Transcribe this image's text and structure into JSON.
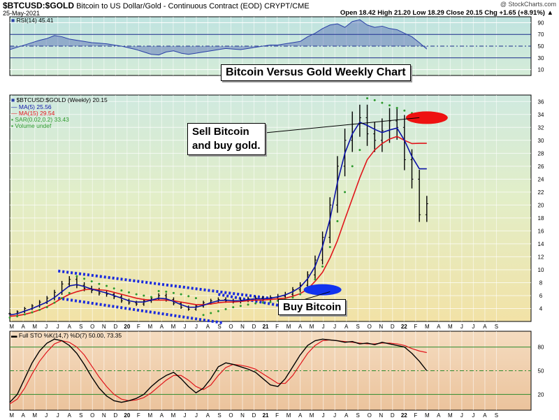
{
  "header": {
    "symbol": "$BTCUSD:$GOLD",
    "description": "Bitcoin to US Dollar/Gold - Continuous Contract (EOD) CRYPT/CME",
    "date": "25-May-2021",
    "watermark": "@ StockCharts.com",
    "ohlc": "Open 18.42  High 21.20  Low 18.29  Close 20.15  Chg +1.65 (+8.91%) ▲"
  },
  "annotations": {
    "title": "Bitcoin Versus Gold Weekly Chart",
    "sell_line1": "Sell Bitcoin",
    "sell_line2": "and buy gold.",
    "buy": "Buy Bitcoin"
  },
  "colors": {
    "price": "#000000",
    "ma5": "#0b12a8",
    "ma15": "#e0151b",
    "sar": "#2e9a2e",
    "sell_marker": "#ee1111",
    "buy_marker": "#1133ee",
    "channel": "#1a2bdd",
    "rsi_line": "#2a3fa6",
    "sto_k": "#000000",
    "sto_d": "#e0151b"
  },
  "chart_data": [
    {
      "type": "line",
      "panel": "rsi",
      "legend": "RSI(14) 45.41",
      "ylim": [
        0,
        100
      ],
      "ticks": [
        10,
        30,
        50,
        70,
        90
      ],
      "reference_lines": [
        30,
        50,
        70
      ],
      "series": [
        {
          "name": "RSI(14)",
          "x": [
            0,
            2,
            4,
            6,
            8,
            10,
            12,
            14,
            16,
            18,
            20,
            22,
            24,
            26,
            28,
            30,
            32,
            34,
            36,
            38,
            40,
            42,
            44,
            46,
            48,
            50,
            52,
            54,
            56,
            58,
            60,
            62,
            64,
            66,
            68,
            70,
            72,
            74,
            76,
            78,
            80,
            82,
            84,
            86,
            88,
            90,
            92,
            94,
            96,
            98,
            100,
            102,
            104,
            106,
            108,
            110,
            112
          ],
          "values": [
            44,
            48,
            52,
            56,
            60,
            63,
            68,
            66,
            62,
            60,
            58,
            56,
            55,
            54,
            52,
            50,
            47,
            44,
            40,
            36,
            35,
            40,
            42,
            38,
            36,
            38,
            40,
            42,
            44,
            46,
            45,
            44,
            46,
            48,
            50,
            52,
            52,
            54,
            56,
            58,
            66,
            72,
            80,
            86,
            88,
            82,
            92,
            95,
            86,
            82,
            84,
            80,
            78,
            72,
            66,
            56,
            45
          ]
        }
      ]
    },
    {
      "type": "line",
      "panel": "price",
      "title": "$BTCUSD:$GOLD (Weekly) 20.15",
      "ylim": [
        2,
        37
      ],
      "ticks": [
        4,
        6,
        8,
        10,
        12,
        14,
        16,
        18,
        20,
        22,
        24,
        26,
        28,
        30,
        32,
        34,
        36
      ],
      "x_tick_labels": [
        "M",
        "A",
        "M",
        "J",
        "J",
        "A",
        "S",
        "O",
        "N",
        "D",
        "20",
        "F",
        "M",
        "A",
        "M",
        "J",
        "J",
        "A",
        "S",
        "O",
        "N",
        "D",
        "21",
        "F",
        "M",
        "A",
        "M",
        "J",
        "J",
        "A",
        "S",
        "O",
        "N",
        "D",
        "22",
        "F",
        "M",
        "A",
        "M",
        "J",
        "J",
        "A",
        "S"
      ],
      "legend_entries": [
        "MA(5) 25.56",
        "MA(15) 29.54",
        "SAR(0.02,0.2) 33.43",
        "Volume undef"
      ],
      "series": [
        {
          "name": "$BTCUSD:$GOLD",
          "x": [
            0,
            2,
            4,
            6,
            8,
            10,
            12,
            14,
            16,
            18,
            20,
            22,
            24,
            26,
            28,
            30,
            32,
            34,
            36,
            38,
            40,
            42,
            44,
            46,
            48,
            50,
            52,
            54,
            56,
            58,
            60,
            62,
            64,
            66,
            68,
            70,
            72,
            74,
            76,
            78,
            80,
            82,
            84,
            86,
            88,
            90,
            92,
            94,
            96,
            98,
            100,
            102,
            104,
            106,
            108,
            110,
            112
          ],
          "values": [
            3.2,
            3.5,
            4.0,
            4.4,
            5.0,
            5.6,
            6.5,
            7.8,
            8.5,
            7.6,
            7.1,
            6.8,
            6.4,
            6.2,
            5.8,
            5.2,
            4.9,
            4.7,
            5.2,
            5.6,
            6.0,
            5.4,
            4.8,
            4.2,
            3.9,
            4.4,
            4.9,
            5.2,
            5.4,
            5.2,
            5.1,
            5.3,
            5.5,
            5.6,
            5.4,
            5.7,
            5.9,
            6.2,
            6.9,
            7.6,
            9.2,
            11.5,
            15.0,
            20.0,
            26.0,
            30.0,
            32.5,
            33.5,
            31.0,
            30.0,
            31.5,
            33.0,
            32.0,
            27.0,
            24.0,
            18.5,
            20.2
          ]
        },
        {
          "name": "MA(5)",
          "x": [
            0,
            2,
            4,
            6,
            8,
            10,
            12,
            14,
            16,
            18,
            20,
            22,
            24,
            26,
            28,
            30,
            32,
            34,
            36,
            38,
            40,
            42,
            44,
            46,
            48,
            50,
            52,
            54,
            56,
            58,
            60,
            62,
            64,
            66,
            68,
            70,
            72,
            74,
            76,
            78,
            80,
            82,
            84,
            86,
            88,
            90,
            92,
            94,
            96,
            98,
            100,
            102,
            104,
            106,
            108,
            110,
            112
          ],
          "values": [
            3.0,
            3.2,
            3.6,
            4.0,
            4.5,
            5.0,
            5.7,
            6.6,
            7.5,
            7.7,
            7.4,
            7.0,
            6.7,
            6.4,
            6.0,
            5.6,
            5.2,
            5.0,
            5.0,
            5.3,
            5.6,
            5.5,
            5.1,
            4.6,
            4.2,
            4.2,
            4.5,
            4.9,
            5.2,
            5.3,
            5.2,
            5.2,
            5.4,
            5.5,
            5.5,
            5.6,
            5.8,
            6.1,
            6.6,
            7.3,
            8.6,
            10.5,
            13.6,
            17.8,
            23.5,
            28.0,
            31.0,
            32.8,
            32.3,
            31.7,
            31.2,
            31.6,
            31.9,
            30.0,
            27.5,
            25.6,
            25.6
          ]
        },
        {
          "name": "MA(15)",
          "x": [
            0,
            2,
            4,
            6,
            8,
            10,
            12,
            14,
            16,
            18,
            20,
            22,
            24,
            26,
            28,
            30,
            32,
            34,
            36,
            38,
            40,
            42,
            44,
            46,
            48,
            50,
            52,
            54,
            56,
            58,
            60,
            62,
            64,
            66,
            68,
            70,
            72,
            74,
            76,
            78,
            80,
            82,
            84,
            86,
            88,
            90,
            92,
            94,
            96,
            98,
            100,
            102,
            104,
            106,
            108,
            110,
            112
          ],
          "values": [
            2.8,
            2.9,
            3.1,
            3.4,
            3.8,
            4.3,
            4.9,
            5.6,
            6.2,
            6.6,
            6.9,
            7.0,
            6.9,
            6.8,
            6.5,
            6.2,
            5.9,
            5.6,
            5.4,
            5.3,
            5.3,
            5.3,
            5.2,
            5.0,
            4.8,
            4.6,
            4.6,
            4.7,
            4.9,
            5.0,
            5.0,
            5.1,
            5.2,
            5.3,
            5.3,
            5.4,
            5.5,
            5.6,
            5.9,
            6.3,
            7.0,
            8.2,
            9.6,
            11.8,
            14.5,
            17.8,
            21.0,
            24.2,
            27.0,
            28.5,
            29.5,
            30.2,
            30.6,
            30.0,
            29.5,
            29.54,
            29.54
          ]
        },
        {
          "name": "SAR(0.02,0.2)",
          "x": [
            0,
            2,
            4,
            6,
            8,
            10,
            12,
            14,
            16,
            18,
            20,
            22,
            24,
            26,
            28,
            30,
            32,
            34,
            36,
            38,
            40,
            42,
            44,
            46,
            48,
            50,
            52,
            54,
            56,
            58,
            60,
            62,
            64,
            66,
            68,
            70,
            72,
            74,
            76,
            78,
            80,
            82,
            84,
            86,
            88,
            90,
            92,
            94,
            96,
            98,
            100,
            102,
            104,
            106,
            108,
            110,
            112
          ],
          "values": [
            2.6,
            2.8,
            3.1,
            3.4,
            3.8,
            4.2,
            4.9,
            5.6,
            6.4,
            9.0,
            8.6,
            8.2,
            7.8,
            7.5,
            7.1,
            6.8,
            6.5,
            6.2,
            6.0,
            5.8,
            6.7,
            6.6,
            6.4,
            6.2,
            5.9,
            5.6,
            3.0,
            3.3,
            3.6,
            3.9,
            4.2,
            4.4,
            4.6,
            4.8,
            4.9,
            5.0,
            5.2,
            5.4,
            5.7,
            6.2,
            7.0,
            8.5,
            10.5,
            13.5,
            17.5,
            22.0,
            26.0,
            28.5,
            36.5,
            36.2,
            35.8,
            35.4,
            35.0,
            34.6,
            34.2,
            33.43,
            33.43
          ]
        }
      ]
    },
    {
      "type": "line",
      "panel": "stochastic",
      "legend": "Full STO %K(14,7) %D(7) 50.00, 73.35",
      "ylim": [
        0,
        100
      ],
      "ticks": [
        20,
        50,
        80
      ],
      "reference_lines": [
        20,
        50,
        80
      ],
      "series": [
        {
          "name": "%K(14,7)",
          "x": [
            0,
            2,
            4,
            6,
            8,
            10,
            12,
            14,
            16,
            18,
            20,
            22,
            24,
            26,
            28,
            30,
            32,
            34,
            36,
            38,
            40,
            42,
            44,
            46,
            48,
            50,
            52,
            54,
            56,
            58,
            60,
            62,
            64,
            66,
            68,
            70,
            72,
            74,
            76,
            78,
            80,
            82,
            84,
            86,
            88,
            90,
            92,
            94,
            96,
            98,
            100,
            102,
            104,
            106,
            108,
            110,
            112
          ],
          "values": [
            10,
            20,
            40,
            60,
            75,
            85,
            90,
            88,
            82,
            72,
            58,
            42,
            28,
            18,
            12,
            10,
            12,
            15,
            20,
            30,
            38,
            44,
            48,
            40,
            30,
            22,
            28,
            40,
            55,
            60,
            58,
            55,
            52,
            48,
            40,
            32,
            30,
            40,
            55,
            70,
            82,
            88,
            90,
            89,
            88,
            86,
            87,
            84,
            85,
            83,
            86,
            84,
            82,
            80,
            72,
            62,
            50
          ]
        },
        {
          "name": "%D(7)",
          "x": [
            0,
            2,
            4,
            6,
            8,
            10,
            12,
            14,
            16,
            18,
            20,
            22,
            24,
            26,
            28,
            30,
            32,
            34,
            36,
            38,
            40,
            42,
            44,
            46,
            48,
            50,
            52,
            54,
            56,
            58,
            60,
            62,
            64,
            66,
            68,
            70,
            72,
            74,
            76,
            78,
            80,
            82,
            84,
            86,
            88,
            90,
            92,
            94,
            96,
            98,
            100,
            102,
            104,
            106,
            108,
            110,
            112
          ],
          "values": [
            8,
            14,
            28,
            46,
            62,
            74,
            84,
            88,
            86,
            80,
            70,
            56,
            42,
            30,
            20,
            14,
            12,
            13,
            16,
            22,
            30,
            38,
            44,
            44,
            38,
            30,
            26,
            32,
            44,
            54,
            58,
            57,
            55,
            52,
            46,
            40,
            34,
            34,
            44,
            58,
            72,
            82,
            88,
            89,
            88,
            87,
            86,
            85,
            84,
            84,
            85,
            85,
            84,
            82,
            78,
            75,
            73
          ]
        }
      ]
    }
  ]
}
